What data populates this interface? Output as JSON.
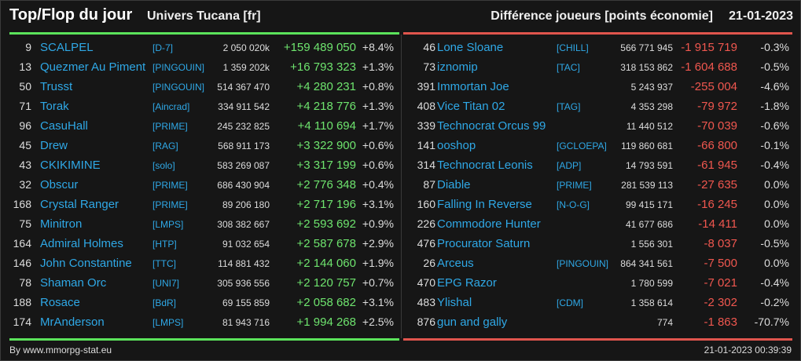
{
  "header": {
    "title": "Top/Flop du jour",
    "subtitle": "Univers Tucana [fr]",
    "metric": "Différence joueurs [points économie]",
    "date": "21-01-2023"
  },
  "colors": {
    "accent_blue": "#2fa8e6",
    "top_green": "#5be35b",
    "flop_red": "#e0554d",
    "up_text": "#6ee46e",
    "down_text": "#f0574f"
  },
  "top": [
    {
      "rank": "9",
      "name": "SCALPEL",
      "alliance": "[D-7]",
      "points": "2 050 020k",
      "diff": "+159 489 050",
      "pct": "+8.4%"
    },
    {
      "rank": "13",
      "name": "Quezmer Au Piment",
      "alliance": "[PINGOUIN]",
      "points": "1 359 202k",
      "diff": "+16 793 323",
      "pct": "+1.3%"
    },
    {
      "rank": "50",
      "name": "Trusst",
      "alliance": "[PINGOUIN]",
      "points": "514 367 470",
      "diff": "+4 280 231",
      "pct": "+0.8%"
    },
    {
      "rank": "71",
      "name": "Torak",
      "alliance": "[Aincrad]",
      "points": "334 911 542",
      "diff": "+4 218 776",
      "pct": "+1.3%"
    },
    {
      "rank": "96",
      "name": "CasuHall",
      "alliance": "[PRIME]",
      "points": "245 232 825",
      "diff": "+4 110 694",
      "pct": "+1.7%"
    },
    {
      "rank": "45",
      "name": "Drew",
      "alliance": "[RAG]",
      "points": "568 911 173",
      "diff": "+3 322 900",
      "pct": "+0.6%"
    },
    {
      "rank": "43",
      "name": "CKIKIMINE",
      "alliance": "[solo]",
      "points": "583 269 087",
      "diff": "+3 317 199",
      "pct": "+0.6%"
    },
    {
      "rank": "32",
      "name": "Obscur",
      "alliance": "[PRIME]",
      "points": "686 430 904",
      "diff": "+2 776 348",
      "pct": "+0.4%"
    },
    {
      "rank": "168",
      "name": "Crystal Ranger",
      "alliance": "[PRIME]",
      "points": "89 206 180",
      "diff": "+2 717 196",
      "pct": "+3.1%"
    },
    {
      "rank": "75",
      "name": "Minitron",
      "alliance": "[LMPS]",
      "points": "308 382 667",
      "diff": "+2 593 692",
      "pct": "+0.9%"
    },
    {
      "rank": "164",
      "name": "Admiral Holmes",
      "alliance": "[HTP]",
      "points": "91 032 654",
      "diff": "+2 587 678",
      "pct": "+2.9%"
    },
    {
      "rank": "146",
      "name": "John Constantine",
      "alliance": "[TTC]",
      "points": "114 881 432",
      "diff": "+2 144 060",
      "pct": "+1.9%"
    },
    {
      "rank": "78",
      "name": "Shaman Orc",
      "alliance": "[UNI7]",
      "points": "305 936 556",
      "diff": "+2 120 757",
      "pct": "+0.7%"
    },
    {
      "rank": "188",
      "name": "Rosace",
      "alliance": "[BdR]",
      "points": "69 155 859",
      "diff": "+2 058 682",
      "pct": "+3.1%"
    },
    {
      "rank": "174",
      "name": "MrAnderson",
      "alliance": "[LMPS]",
      "points": "81 943 716",
      "diff": "+1 994 268",
      "pct": "+2.5%"
    }
  ],
  "flop": [
    {
      "rank": "46",
      "name": "Lone Sloane",
      "alliance": "[CHILL]",
      "points": "566 771 945",
      "diff": "-1 915 719",
      "pct": "-0.3%"
    },
    {
      "rank": "73",
      "name": "iznomip",
      "alliance": "[TAC]",
      "points": "318 153 862",
      "diff": "-1 604 688",
      "pct": "-0.5%"
    },
    {
      "rank": "391",
      "name": "Immortan Joe",
      "alliance": "",
      "points": "5 243 937",
      "diff": "-255 004",
      "pct": "-4.6%"
    },
    {
      "rank": "408",
      "name": "Vice Titan 02",
      "alliance": "[TAG]",
      "points": "4 353 298",
      "diff": "-79 972",
      "pct": "-1.8%"
    },
    {
      "rank": "339",
      "name": "Technocrat Orcus 99",
      "alliance": "",
      "points": "11 440 512",
      "diff": "-70 039",
      "pct": "-0.6%"
    },
    {
      "rank": "141",
      "name": "ooshop",
      "alliance": "[GCLOEPA]",
      "points": "119 860 681",
      "diff": "-66 800",
      "pct": "-0.1%"
    },
    {
      "rank": "314",
      "name": "Technocrat Leonis",
      "alliance": "[ADP]",
      "points": "14 793 591",
      "diff": "-61 945",
      "pct": "-0.4%"
    },
    {
      "rank": "87",
      "name": "Diable",
      "alliance": "[PRIME]",
      "points": "281 539 113",
      "diff": "-27 635",
      "pct": "0.0%"
    },
    {
      "rank": "160",
      "name": "Falling In Reverse",
      "alliance": "[N-O-G]",
      "points": "99 415 171",
      "diff": "-16 245",
      "pct": "0.0%"
    },
    {
      "rank": "226",
      "name": "Commodore Hunter",
      "alliance": "",
      "points": "41 677 686",
      "diff": "-14 411",
      "pct": "0.0%"
    },
    {
      "rank": "476",
      "name": "Procurator Saturn",
      "alliance": "",
      "points": "1 556 301",
      "diff": "-8 037",
      "pct": "-0.5%"
    },
    {
      "rank": "26",
      "name": "Arceus",
      "alliance": "[PINGOUIN]",
      "points": "864 341 561",
      "diff": "-7 500",
      "pct": "0.0%"
    },
    {
      "rank": "470",
      "name": "EPG Razor",
      "alliance": "",
      "points": "1 780 599",
      "diff": "-7 021",
      "pct": "-0.4%"
    },
    {
      "rank": "483",
      "name": "Ylishal",
      "alliance": "[CDM]",
      "points": "1 358 614",
      "diff": "-2 302",
      "pct": "-0.2%"
    },
    {
      "rank": "876",
      "name": "gun and gally",
      "alliance": "",
      "points": "774",
      "diff": "-1 863",
      "pct": "-70.7%"
    }
  ],
  "footer": {
    "source": "By www.mmorpg-stat.eu",
    "timestamp": "21-01-2023 00:39:39"
  }
}
